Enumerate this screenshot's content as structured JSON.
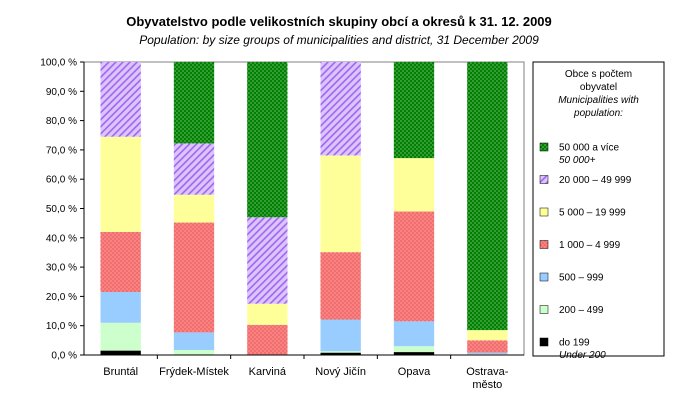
{
  "chart_data": {
    "type": "bar",
    "stacked": true,
    "percent": true,
    "title": "Obyvatelstvo podle velikostních skupiny obcí a okresů k 31. 12. 2009",
    "subtitle": "Population: by size groups of municipalities and district, 31 December 2009",
    "categories": [
      [
        "Bruntál"
      ],
      [
        "Frýdek-Místek"
      ],
      [
        "Karviná"
      ],
      [
        "Nový Jičín"
      ],
      [
        "Opava"
      ],
      [
        "Ostrava-",
        "město"
      ]
    ],
    "yticks": [
      "0,0 %",
      "10,0 %",
      "20,0 %",
      "30,0 %",
      "40,0 %",
      "50,0 %",
      "60,0 %",
      "70,0 %",
      "80,0 %",
      "90,0 %",
      "100,0 %"
    ],
    "ylim": [
      0,
      100
    ],
    "series": [
      {
        "name": "do 199",
        "name_en": "Under 200",
        "color": "#000000",
        "pattern": "solid",
        "values": [
          1.5,
          0.2,
          0,
          0.8,
          1.0,
          0
        ]
      },
      {
        "name": "200 – 499",
        "name_en": "",
        "color": "#ccffcc",
        "pattern": "solid",
        "values": [
          9.5,
          1.5,
          0,
          0.5,
          2.0,
          0.3
        ]
      },
      {
        "name": "500 – 999",
        "name_en": "",
        "color": "#99ccff",
        "pattern": "solid",
        "values": [
          10.5,
          6.0,
          0,
          10.8,
          8.5,
          0.5
        ]
      },
      {
        "name": "1 000 – 4 999",
        "name_en": "",
        "color": "#ff8080",
        "pattern": "dots",
        "values": [
          20.5,
          37.5,
          10.3,
          23.0,
          37.5,
          4.2
        ]
      },
      {
        "name": "5 000 – 19 999",
        "name_en": "",
        "color": "#ffff99",
        "pattern": "solid",
        "values": [
          32.5,
          9.5,
          7.2,
          33.0,
          18.2,
          3.5
        ]
      },
      {
        "name": "20 000 – 49 999",
        "name_en": "",
        "color": "#cc99ff",
        "pattern": "hatch",
        "values": [
          25.5,
          17.5,
          29.5,
          31.9,
          0,
          0
        ]
      },
      {
        "name": "50 000 a více",
        "name_en": "50 000+",
        "color": "#008000",
        "pattern": "dots",
        "values": [
          0,
          27.8,
          53.0,
          0,
          32.8,
          91.5
        ]
      }
    ],
    "legend": {
      "title": [
        "Obce s počtem",
        "obyvatel"
      ],
      "title_en": [
        "Municipalities with",
        "population:"
      ],
      "position": "right"
    }
  }
}
